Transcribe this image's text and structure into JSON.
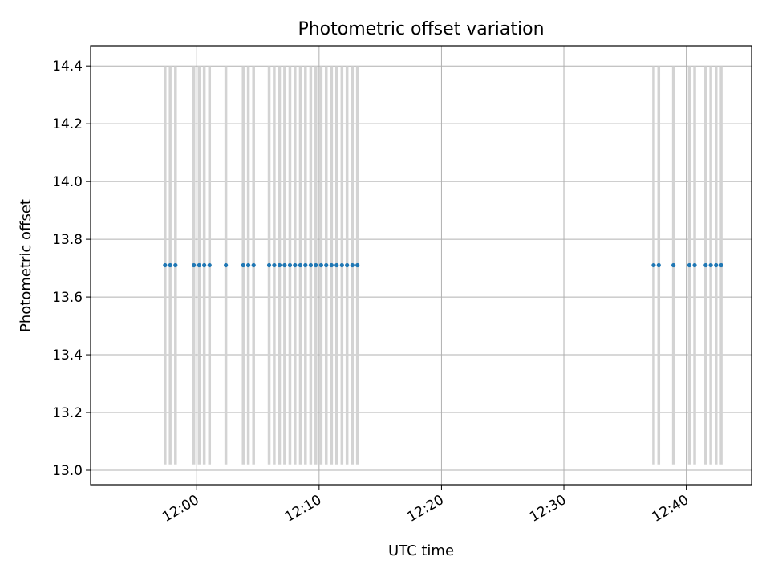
{
  "chart_data": {
    "type": "scatter",
    "title": "Photometric offset variation",
    "xlabel": "UTC time",
    "ylabel": "Photometric offset",
    "x_axis": "time",
    "xlim": [
      "11:51:20",
      "12:45:20"
    ],
    "ylim": [
      12.95,
      14.47
    ],
    "grid": true,
    "x_ticks": [
      "12:00",
      "12:10",
      "12:20",
      "12:30",
      "12:40"
    ],
    "y_ticks": [
      "13.0",
      "13.2",
      "13.4",
      "13.6",
      "13.8",
      "14.0",
      "14.2",
      "14.4"
    ],
    "marker_color": "#1f77b4",
    "errorbar_color": "#d3d3d3",
    "series": [
      {
        "x": [
          "11:57:25",
          "11:57:50",
          "11:58:16",
          "11:59:46",
          "12:00:12",
          "12:00:37",
          "12:01:03",
          "12:02:23",
          "12:03:48",
          "12:04:13",
          "12:04:39",
          "12:05:55",
          "12:06:20",
          "12:06:46",
          "12:07:11",
          "12:07:37",
          "12:08:02",
          "12:08:28",
          "12:08:53",
          "12:09:19",
          "12:09:44",
          "12:10:10",
          "12:10:35",
          "12:11:01",
          "12:11:26",
          "12:11:52",
          "12:12:17",
          "12:12:43",
          "12:13:08",
          "12:37:20",
          "12:37:45",
          "12:38:57",
          "12:40:15",
          "12:40:41",
          "12:41:35",
          "12:42:00",
          "12:42:26",
          "12:42:51"
        ],
        "y": [
          13.71,
          13.71,
          13.71,
          13.71,
          13.71,
          13.71,
          13.71,
          13.71,
          13.71,
          13.71,
          13.71,
          13.71,
          13.71,
          13.71,
          13.71,
          13.71,
          13.71,
          13.71,
          13.71,
          13.71,
          13.71,
          13.71,
          13.71,
          13.71,
          13.71,
          13.71,
          13.71,
          13.71,
          13.71,
          13.71,
          13.71,
          13.71,
          13.71,
          13.71,
          13.71,
          13.71,
          13.71,
          13.71
        ],
        "error_low": [
          13.02,
          13.02,
          13.02,
          13.02,
          13.02,
          13.02,
          13.02,
          13.02,
          13.02,
          13.02,
          13.02,
          13.02,
          13.02,
          13.02,
          13.02,
          13.02,
          13.02,
          13.02,
          13.02,
          13.02,
          13.02,
          13.02,
          13.02,
          13.02,
          13.02,
          13.02,
          13.02,
          13.02,
          13.02,
          13.02,
          13.02,
          13.02,
          13.02,
          13.02,
          13.02,
          13.02,
          13.02,
          13.02
        ],
        "error_high": [
          14.4,
          14.4,
          14.4,
          14.4,
          14.4,
          14.4,
          14.4,
          14.4,
          14.4,
          14.4,
          14.4,
          14.4,
          14.4,
          14.4,
          14.4,
          14.4,
          14.4,
          14.4,
          14.4,
          14.4,
          14.4,
          14.4,
          14.4,
          14.4,
          14.4,
          14.4,
          14.4,
          14.4,
          14.4,
          14.4,
          14.4,
          14.4,
          14.4,
          14.4,
          14.4,
          14.4,
          14.4,
          14.4
        ]
      }
    ]
  }
}
